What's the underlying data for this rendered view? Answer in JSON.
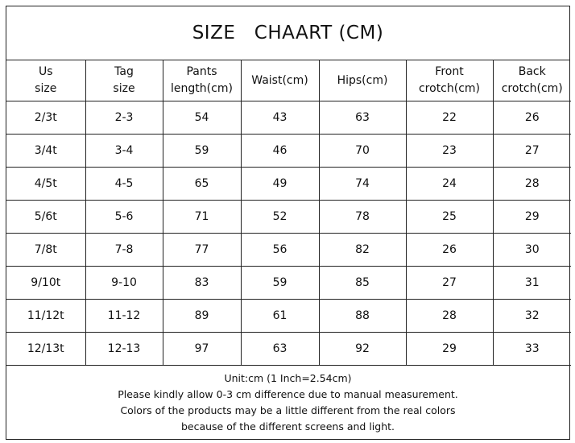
{
  "title": "SIZE   CHAART (CM)",
  "table": {
    "header": [
      [
        "Us",
        "size"
      ],
      [
        "Tag",
        "size"
      ],
      [
        "Pants",
        "length(cm)"
      ],
      [
        "Waist(cm)"
      ],
      [
        "Hips(cm)"
      ],
      [
        "Front",
        "crotch(cm)"
      ],
      [
        "Back",
        "crotch(cm)"
      ]
    ],
    "rows": [
      [
        "2/3t",
        "2-3",
        54,
        43,
        63,
        22,
        26
      ],
      [
        "3/4t",
        "3-4",
        59,
        46,
        70,
        23,
        27
      ],
      [
        "4/5t",
        "4-5",
        65,
        49,
        74,
        24,
        28
      ],
      [
        "5/6t",
        "5-6",
        71,
        52,
        78,
        25,
        29
      ],
      [
        "7/8t",
        "7-8",
        77,
        56,
        82,
        26,
        30
      ],
      [
        "9/10t",
        "9-10",
        83,
        59,
        85,
        27,
        31
      ],
      [
        "11/12t",
        "11-12",
        89,
        61,
        88,
        28,
        32
      ],
      [
        "12/13t",
        "12-13",
        97,
        63,
        92,
        29,
        33
      ]
    ]
  },
  "notes": [
    "Unit:cm  (1 Inch=2.54cm)",
    "Please kindly allow 0-3 cm difference due to manual measurement.",
    "Colors of the products may be a little different from the real colors",
    "because of the different screens and light."
  ]
}
